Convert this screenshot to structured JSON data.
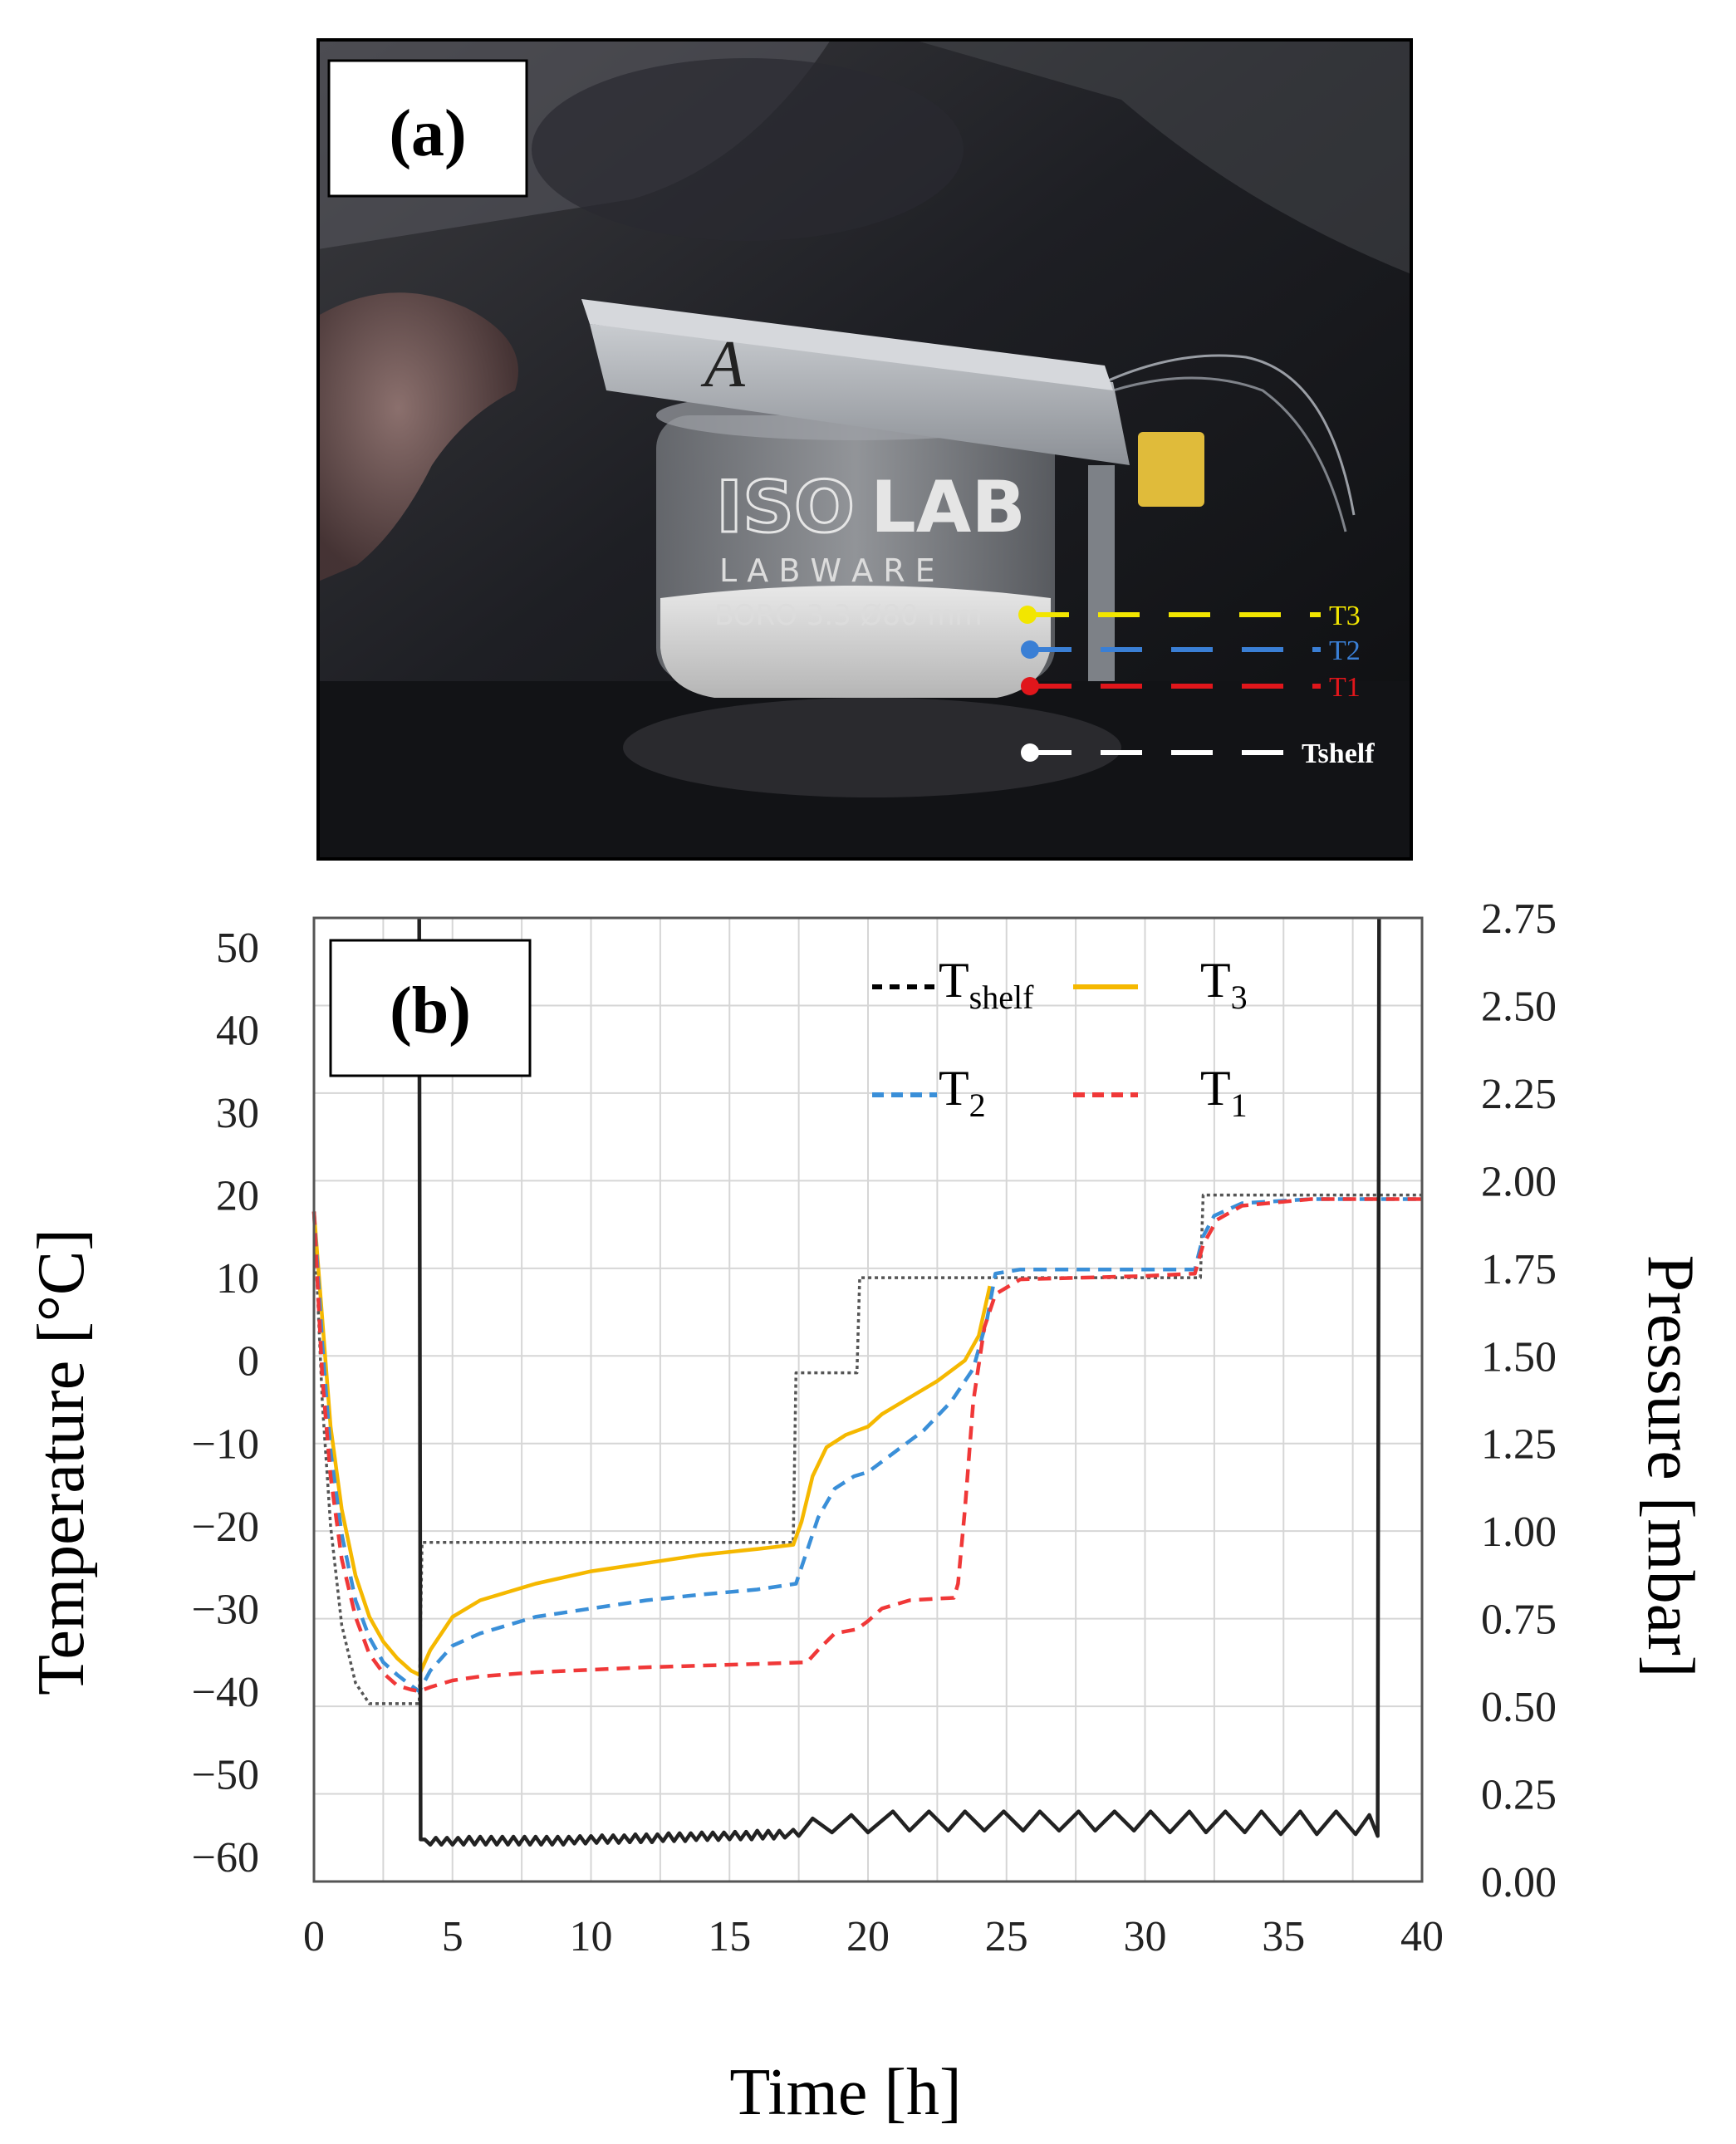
{
  "photo_panel": {
    "panel_label": "(a)",
    "jar_brand": "ISOLAB",
    "brand_part1": "ISO",
    "brand_part2": "LAB",
    "brand_sub": "L A B W A R E",
    "jar_text": "BORO 3.3  Ø80 mm",
    "lid_mark": "A",
    "sensors": [
      {
        "label": "T3",
        "color": "#f2e600"
      },
      {
        "label": "T2",
        "color": "#3a7fd5"
      },
      {
        "label": "T1",
        "color": "#e0161b"
      },
      {
        "label": "Tshelf",
        "color": "#ffffff"
      }
    ]
  },
  "chart_data": {
    "type": "line",
    "panel_label": "(b)",
    "xlabel": "Time [h]",
    "ylabel": "Temperature [°C]",
    "y2label": "Pressure [mbar]",
    "xlim": [
      0,
      40
    ],
    "ylim": [
      -63,
      53.5
    ],
    "y2lim": [
      0,
      2.75
    ],
    "x_ticks": [
      "0",
      "5",
      "10",
      "15",
      "20",
      "25",
      "30",
      "35",
      "40"
    ],
    "y_ticks": [
      "50",
      "40",
      "30",
      "20",
      "10",
      "0",
      "−10",
      "−20",
      "−30",
      "−40",
      "−50",
      "−60"
    ],
    "y2_ticks": [
      "2.75",
      "2.50",
      "2.25",
      "2.00",
      "1.75",
      "1.50",
      "1.25",
      "1.00",
      "0.75",
      "0.50",
      "0.25",
      "0.00"
    ],
    "grid": true,
    "legend_position": "top-right",
    "legend": [
      {
        "key": "shelf",
        "label_main": "T",
        "label_sub": "shelf"
      },
      {
        "key": "t3",
        "label_main": "T",
        "label_sub": "3"
      },
      {
        "key": "t2",
        "label_main": "T",
        "label_sub": "2"
      },
      {
        "key": "t1",
        "label_main": "T",
        "label_sub": "1"
      }
    ],
    "series": [
      {
        "key": "shelf",
        "name": "Tshelf",
        "axis": "left",
        "color": "#555555",
        "dash": "dotted",
        "points": [
          [
            0,
            18
          ],
          [
            0.3,
            -5
          ],
          [
            0.6,
            -20
          ],
          [
            1,
            -32
          ],
          [
            1.5,
            -39
          ],
          [
            2,
            -41.5
          ],
          [
            3.8,
            -41.5
          ],
          [
            3.9,
            -22
          ],
          [
            17.3,
            -22
          ],
          [
            17.4,
            -1.5
          ],
          [
            19.6,
            -1.5
          ],
          [
            19.7,
            10
          ],
          [
            24.5,
            10
          ],
          [
            32,
            10
          ],
          [
            32.1,
            20
          ],
          [
            40,
            20
          ]
        ]
      },
      {
        "key": "t3",
        "name": "T3",
        "axis": "left",
        "color": "#f5b800",
        "dash": "solid",
        "points": [
          [
            0,
            18
          ],
          [
            0.3,
            5
          ],
          [
            0.6,
            -8
          ],
          [
            1,
            -18
          ],
          [
            1.5,
            -26
          ],
          [
            2,
            -31
          ],
          [
            2.5,
            -34
          ],
          [
            3,
            -36
          ],
          [
            3.5,
            -37.5
          ],
          [
            3.8,
            -38
          ],
          [
            4.2,
            -35
          ],
          [
            5,
            -31
          ],
          [
            6,
            -29
          ],
          [
            8,
            -27
          ],
          [
            10,
            -25.5
          ],
          [
            12,
            -24.5
          ],
          [
            14,
            -23.5
          ],
          [
            16,
            -22.8
          ],
          [
            17.3,
            -22.3
          ],
          [
            17.6,
            -19.5
          ],
          [
            18,
            -14
          ],
          [
            18.5,
            -10.5
          ],
          [
            19.2,
            -9
          ],
          [
            20,
            -8
          ],
          [
            20.5,
            -6.5
          ],
          [
            21.5,
            -4.5
          ],
          [
            22.5,
            -2.5
          ],
          [
            23.5,
            0
          ],
          [
            24,
            3
          ],
          [
            24.4,
            9
          ]
        ]
      },
      {
        "key": "t2",
        "name": "T2",
        "axis": "left",
        "color": "#3a8fd8",
        "dash": "dashed",
        "points": [
          [
            0,
            18
          ],
          [
            0.3,
            2
          ],
          [
            0.6,
            -11
          ],
          [
            1,
            -21
          ],
          [
            1.5,
            -29
          ],
          [
            2,
            -33.5
          ],
          [
            2.5,
            -36.5
          ],
          [
            3,
            -38
          ],
          [
            3.5,
            -39.3
          ],
          [
            3.8,
            -40
          ],
          [
            4.2,
            -37.5
          ],
          [
            5,
            -34.5
          ],
          [
            6,
            -33
          ],
          [
            8,
            -31
          ],
          [
            10,
            -30
          ],
          [
            12,
            -29
          ],
          [
            14,
            -28.3
          ],
          [
            16,
            -27.7
          ],
          [
            17.4,
            -27
          ],
          [
            17.7,
            -24
          ],
          [
            18.2,
            -19
          ],
          [
            18.8,
            -15.5
          ],
          [
            19.5,
            -14
          ],
          [
            20,
            -13.5
          ],
          [
            21,
            -11
          ],
          [
            22,
            -8.5
          ],
          [
            23,
            -5
          ],
          [
            23.8,
            -1
          ],
          [
            24.3,
            5
          ],
          [
            24.6,
            10.5
          ],
          [
            25.5,
            11
          ],
          [
            30,
            11
          ],
          [
            31.8,
            11
          ],
          [
            32.1,
            15
          ],
          [
            32.5,
            17.5
          ],
          [
            33.5,
            19
          ],
          [
            36,
            19.5
          ],
          [
            40,
            19.5
          ]
        ]
      },
      {
        "key": "t1",
        "name": "T1",
        "axis": "left",
        "color": "#f03838",
        "dash": "dashed",
        "points": [
          [
            0,
            18
          ],
          [
            0.3,
            -2
          ],
          [
            0.6,
            -14
          ],
          [
            1,
            -24
          ],
          [
            1.5,
            -31
          ],
          [
            2,
            -35.5
          ],
          [
            2.5,
            -37.8
          ],
          [
            3,
            -39.3
          ],
          [
            3.5,
            -39.8
          ],
          [
            3.8,
            -40
          ],
          [
            4.2,
            -39.5
          ],
          [
            5,
            -38.7
          ],
          [
            6,
            -38.2
          ],
          [
            8,
            -37.7
          ],
          [
            10,
            -37.4
          ],
          [
            12,
            -37.1
          ],
          [
            14,
            -36.9
          ],
          [
            16,
            -36.7
          ],
          [
            17.8,
            -36.5
          ],
          [
            18.2,
            -35
          ],
          [
            18.8,
            -33
          ],
          [
            19.6,
            -32.5
          ],
          [
            20,
            -31.5
          ],
          [
            20.5,
            -30
          ],
          [
            21.5,
            -29
          ],
          [
            22.5,
            -28.8
          ],
          [
            23.1,
            -28.7
          ],
          [
            23.25,
            -27
          ],
          [
            23.5,
            -18
          ],
          [
            23.8,
            -5
          ],
          [
            24.2,
            4
          ],
          [
            24.6,
            8
          ],
          [
            25.5,
            9.8
          ],
          [
            30,
            10.2
          ],
          [
            31.8,
            10.5
          ],
          [
            32.1,
            14
          ],
          [
            32.6,
            17
          ],
          [
            33.5,
            18.7
          ],
          [
            36,
            19.5
          ],
          [
            40,
            19.5
          ]
        ]
      },
      {
        "key": "pressure",
        "name": "Pressure",
        "axis": "right",
        "color": "#222222",
        "dash": "solid",
        "points": [
          [
            3.8,
            2.75
          ],
          [
            3.85,
            0.12
          ],
          [
            4,
            0.12
          ],
          [
            4.2,
            0.105
          ],
          [
            4.4,
            0.125
          ],
          [
            4.6,
            0.105
          ],
          [
            4.8,
            0.125
          ],
          [
            5,
            0.105
          ],
          [
            5.2,
            0.125
          ],
          [
            5.4,
            0.105
          ],
          [
            5.6,
            0.128
          ],
          [
            5.8,
            0.105
          ],
          [
            6,
            0.128
          ],
          [
            6.2,
            0.105
          ],
          [
            6.4,
            0.128
          ],
          [
            6.6,
            0.105
          ],
          [
            6.8,
            0.128
          ],
          [
            7,
            0.105
          ],
          [
            7.2,
            0.128
          ],
          [
            7.4,
            0.105
          ],
          [
            7.6,
            0.128
          ],
          [
            7.8,
            0.105
          ],
          [
            8,
            0.128
          ],
          [
            8.2,
            0.105
          ],
          [
            8.4,
            0.128
          ],
          [
            8.6,
            0.105
          ],
          [
            8.8,
            0.128
          ],
          [
            9,
            0.105
          ],
          [
            9.2,
            0.128
          ],
          [
            9.4,
            0.108
          ],
          [
            9.6,
            0.13
          ],
          [
            9.8,
            0.108
          ],
          [
            10,
            0.13
          ],
          [
            10.2,
            0.11
          ],
          [
            10.4,
            0.132
          ],
          [
            10.6,
            0.11
          ],
          [
            10.8,
            0.132
          ],
          [
            11,
            0.11
          ],
          [
            11.2,
            0.132
          ],
          [
            11.4,
            0.112
          ],
          [
            11.6,
            0.135
          ],
          [
            11.8,
            0.112
          ],
          [
            12,
            0.135
          ],
          [
            12.2,
            0.112
          ],
          [
            12.4,
            0.135
          ],
          [
            12.6,
            0.115
          ],
          [
            12.8,
            0.138
          ],
          [
            13,
            0.115
          ],
          [
            13.2,
            0.138
          ],
          [
            13.4,
            0.115
          ],
          [
            13.6,
            0.138
          ],
          [
            13.8,
            0.118
          ],
          [
            14,
            0.14
          ],
          [
            14.2,
            0.118
          ],
          [
            14.4,
            0.14
          ],
          [
            14.6,
            0.118
          ],
          [
            14.8,
            0.14
          ],
          [
            15,
            0.12
          ],
          [
            15.2,
            0.142
          ],
          [
            15.4,
            0.12
          ],
          [
            15.6,
            0.142
          ],
          [
            15.8,
            0.12
          ],
          [
            16,
            0.145
          ],
          [
            16.2,
            0.122
          ],
          [
            16.4,
            0.145
          ],
          [
            16.6,
            0.122
          ],
          [
            16.8,
            0.145
          ],
          [
            17,
            0.125
          ],
          [
            17.3,
            0.148
          ],
          [
            17.5,
            0.13
          ],
          [
            18,
            0.18
          ],
          [
            18.7,
            0.14
          ],
          [
            19.4,
            0.19
          ],
          [
            20,
            0.14
          ],
          [
            20.9,
            0.2
          ],
          [
            21.5,
            0.145
          ],
          [
            22.2,
            0.2
          ],
          [
            22.9,
            0.145
          ],
          [
            23.5,
            0.2
          ],
          [
            24.2,
            0.145
          ],
          [
            24.9,
            0.2
          ],
          [
            25.6,
            0.145
          ],
          [
            26.2,
            0.2
          ],
          [
            26.9,
            0.145
          ],
          [
            27.6,
            0.2
          ],
          [
            28.2,
            0.145
          ],
          [
            28.9,
            0.2
          ],
          [
            29.6,
            0.145
          ],
          [
            30.2,
            0.2
          ],
          [
            30.9,
            0.14
          ],
          [
            31.6,
            0.2
          ],
          [
            32.2,
            0.14
          ],
          [
            32.9,
            0.2
          ],
          [
            33.6,
            0.14
          ],
          [
            34.2,
            0.2
          ],
          [
            34.9,
            0.135
          ],
          [
            35.6,
            0.2
          ],
          [
            36.2,
            0.135
          ],
          [
            36.9,
            0.2
          ],
          [
            37.6,
            0.135
          ],
          [
            38.1,
            0.19
          ],
          [
            38.4,
            0.13
          ],
          [
            38.45,
            2.75
          ]
        ]
      }
    ]
  }
}
